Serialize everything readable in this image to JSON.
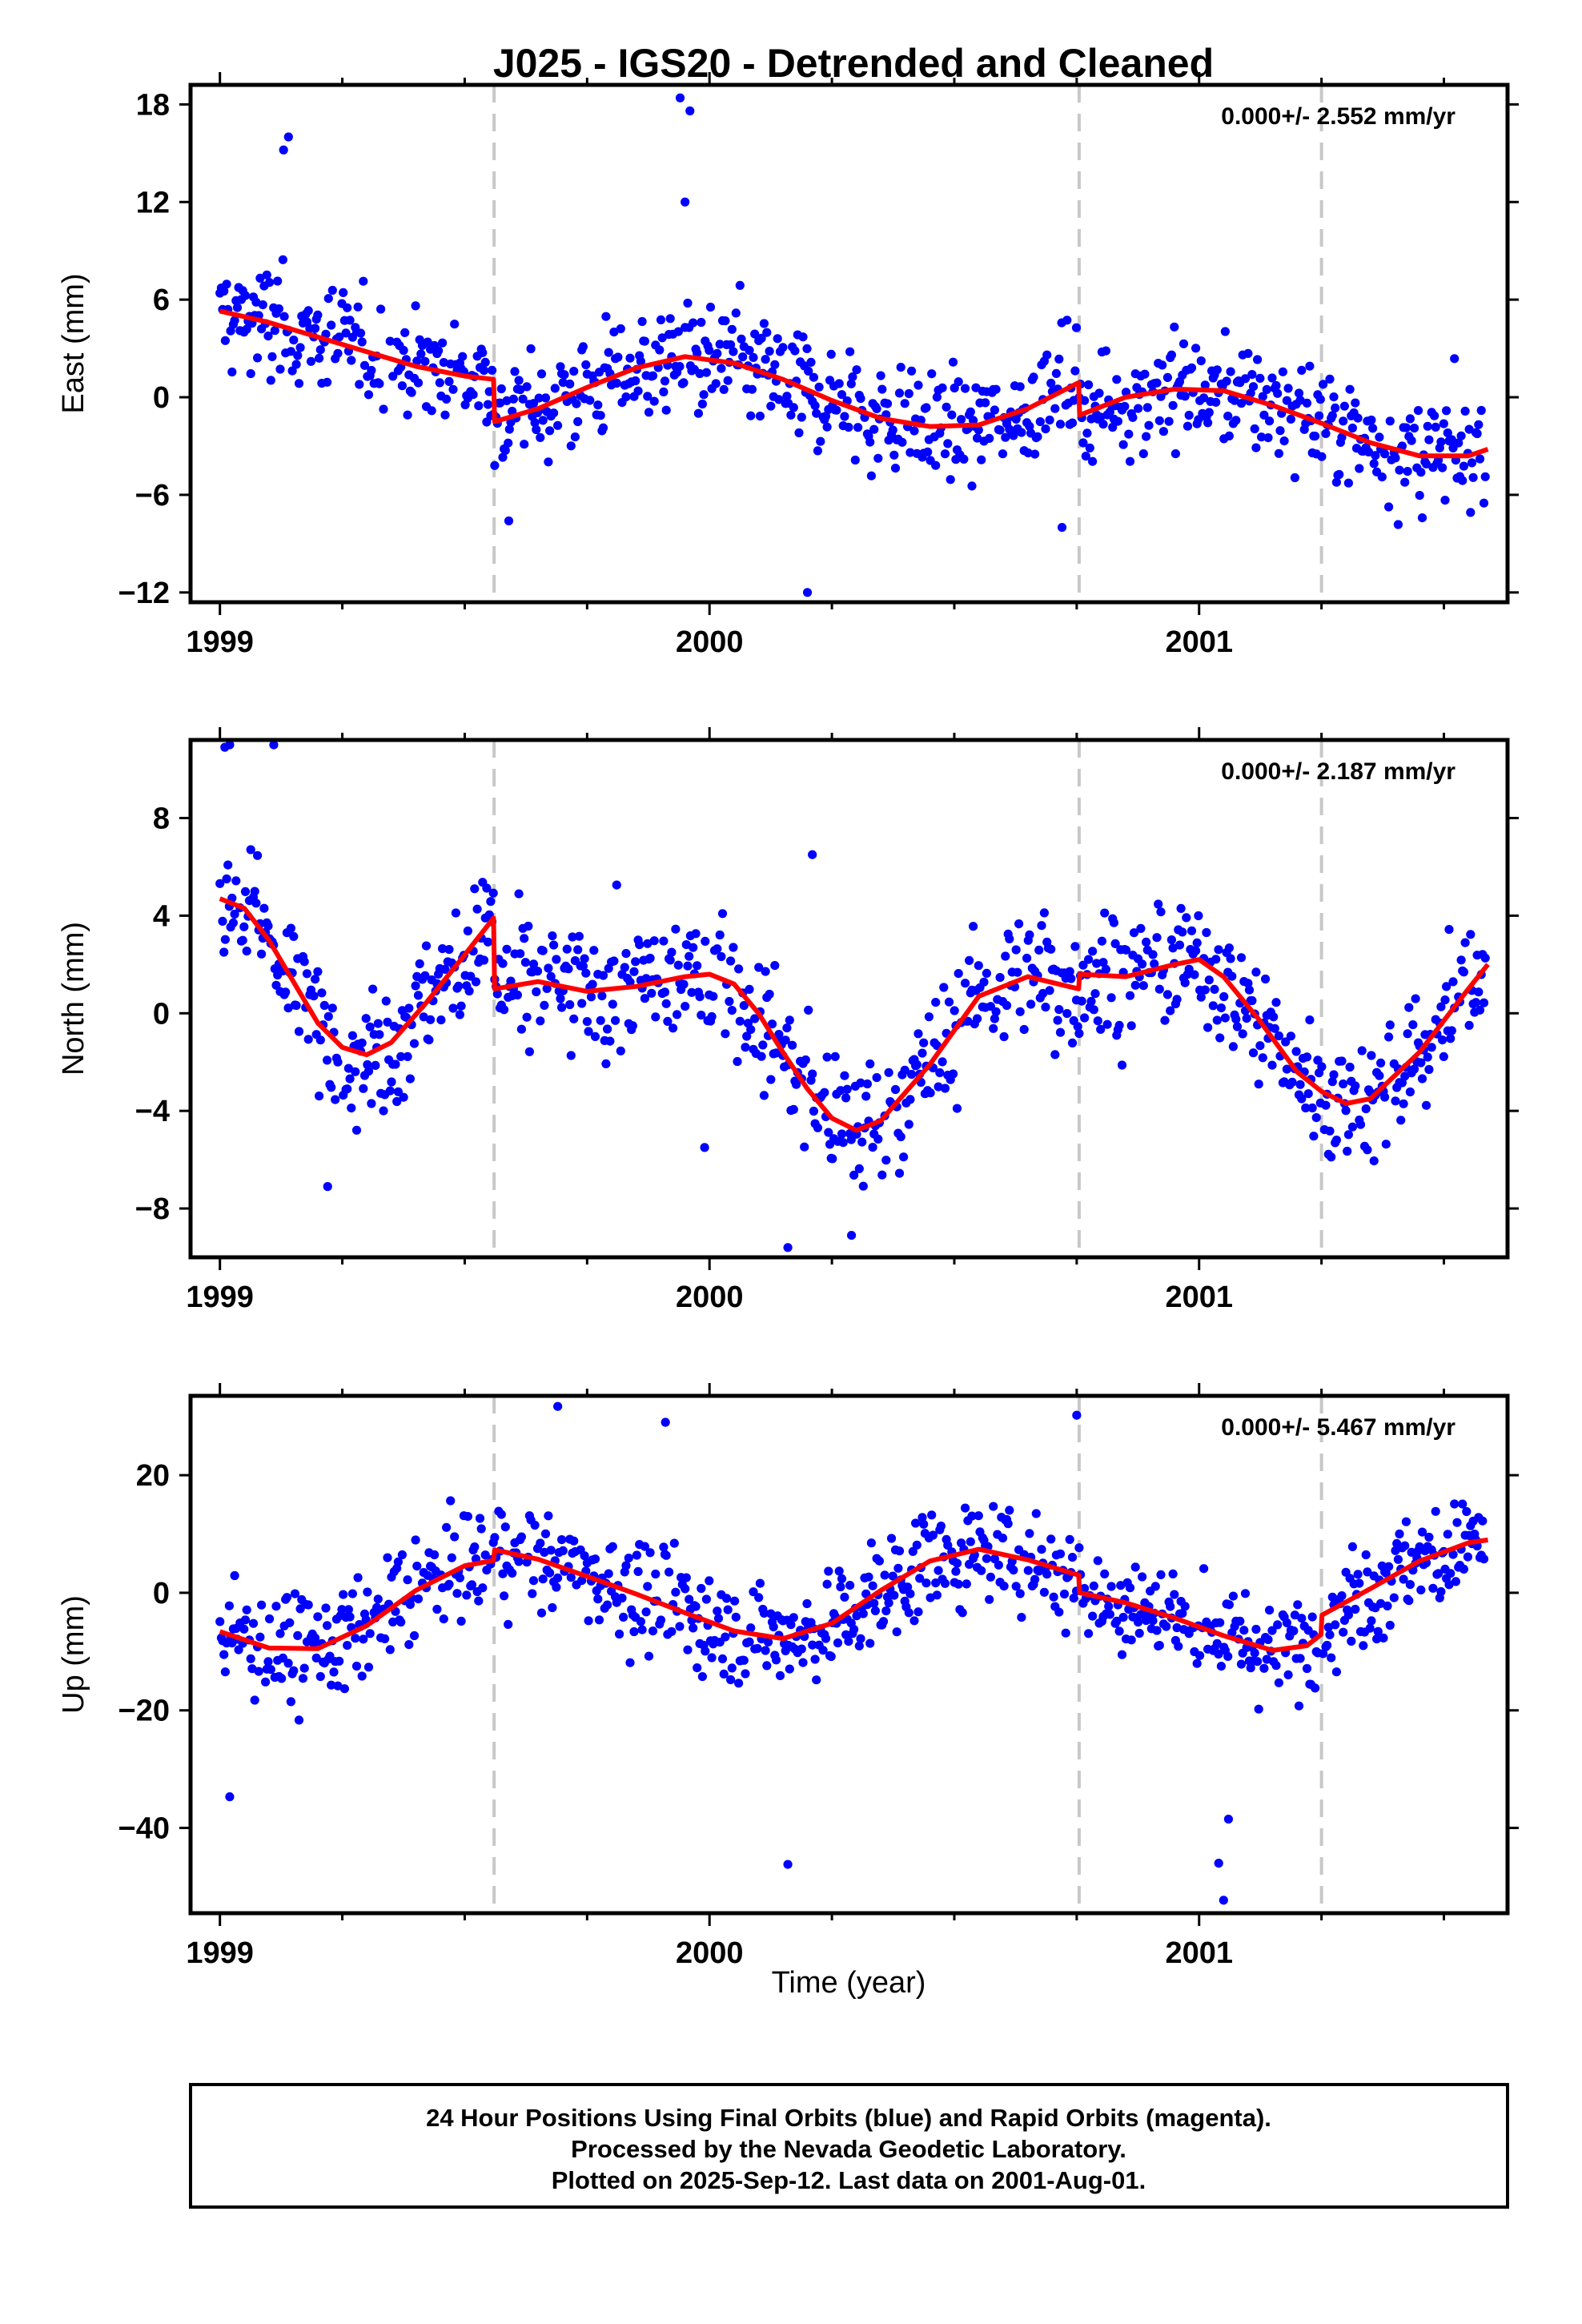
{
  "title": "J025 - IGS20 - Detrended and Cleaned",
  "xlabel": "Time (year)",
  "footer": [
    "24 Hour Positions Using Final Orbits (blue) and Rapid Orbits (magenta).",
    "Processed by the Nevada Geodetic Laboratory.",
    "Plotted on 2025-Sep-12. Last data on 2001-Aug-01."
  ],
  "colors": {
    "final_orbits": "#0000ff",
    "model": "#ff0000",
    "step_lines": "#c8c8c8",
    "frame": "#000000"
  },
  "chart_data": [
    {
      "type": "scatter",
      "panel": "east",
      "ylabel": "East (mm)",
      "rate": "0.000+/- 2.552 mm/yr",
      "xlim": [
        1998.94,
        2001.63
      ],
      "ylim": [
        -12.6,
        19.2
      ],
      "xticks": [
        1999,
        2000,
        2001
      ],
      "xtick_labels": [
        "1999",
        "2000",
        "2001"
      ],
      "yticks": [
        -12,
        -6,
        0,
        6,
        12,
        18
      ],
      "ytick_labels": [
        "−12",
        "−6",
        "0",
        "6",
        "12",
        "18"
      ],
      "steps": [
        1999.56,
        2000.755,
        2001.25
      ],
      "model": [
        [
          1999.0,
          5.3
        ],
        [
          1999.1,
          4.6
        ],
        [
          1999.2,
          3.7
        ],
        [
          1999.3,
          2.8
        ],
        [
          1999.4,
          1.9
        ],
        [
          1999.5,
          1.3
        ],
        [
          1999.559,
          1.1
        ],
        [
          1999.561,
          -1.5
        ],
        [
          1999.65,
          -0.7
        ],
        [
          1999.75,
          0.6
        ],
        [
          1999.85,
          1.8
        ],
        [
          1999.95,
          2.5
        ],
        [
          2000.05,
          2.1
        ],
        [
          2000.15,
          1.1
        ],
        [
          2000.25,
          -0.2
        ],
        [
          2000.35,
          -1.3
        ],
        [
          2000.45,
          -1.8
        ],
        [
          2000.55,
          -1.7
        ],
        [
          2000.65,
          -0.7
        ],
        [
          2000.754,
          0.9
        ],
        [
          2000.756,
          -1.1
        ],
        [
          2000.85,
          0.0
        ],
        [
          2000.95,
          0.5
        ],
        [
          2001.05,
          0.4
        ],
        [
          2001.15,
          -0.5
        ],
        [
          2001.25,
          -1.6
        ],
        [
          2001.35,
          -2.8
        ],
        [
          2001.45,
          -3.6
        ],
        [
          2001.55,
          -3.6
        ],
        [
          2001.59,
          -3.2
        ]
      ],
      "outliers": [
        [
          1999.13,
          15.2
        ],
        [
          1999.14,
          16.0
        ],
        [
          1999.94,
          18.4
        ],
        [
          1999.96,
          17.6
        ],
        [
          1999.95,
          12.0
        ],
        [
          2000.2,
          -12.0
        ],
        [
          2000.72,
          -8.0
        ],
        [
          1999.59,
          -7.6
        ]
      ]
    },
    {
      "type": "scatter",
      "panel": "north",
      "ylabel": "North (mm)",
      "rate": "0.000+/- 2.187 mm/yr",
      "xlim": [
        1998.94,
        2001.63
      ],
      "ylim": [
        -10.0,
        11.2
      ],
      "xticks": [
        1999,
        2000,
        2001
      ],
      "xtick_labels": [
        "1999",
        "2000",
        "2001"
      ],
      "yticks": [
        -8,
        -4,
        0,
        4,
        8
      ],
      "ytick_labels": [
        "−8",
        "−4",
        "0",
        "4",
        "8"
      ],
      "steps": [
        1999.56,
        2000.755,
        2001.25
      ],
      "model": [
        [
          1999.0,
          4.7
        ],
        [
          1999.05,
          4.3
        ],
        [
          1999.1,
          3.0
        ],
        [
          1999.15,
          1.3
        ],
        [
          1999.2,
          -0.4
        ],
        [
          1999.25,
          -1.4
        ],
        [
          1999.3,
          -1.7
        ],
        [
          1999.35,
          -1.2
        ],
        [
          1999.42,
          0.4
        ],
        [
          1999.5,
          2.4
        ],
        [
          1999.559,
          3.9
        ],
        [
          1999.561,
          1.0
        ],
        [
          1999.65,
          1.3
        ],
        [
          1999.75,
          0.9
        ],
        [
          1999.85,
          1.1
        ],
        [
          1999.95,
          1.5
        ],
        [
          2000.0,
          1.6
        ],
        [
          2000.05,
          1.2
        ],
        [
          2000.1,
          0.0
        ],
        [
          2000.15,
          -1.6
        ],
        [
          2000.2,
          -3.1
        ],
        [
          2000.25,
          -4.3
        ],
        [
          2000.3,
          -4.8
        ],
        [
          2000.35,
          -4.4
        ],
        [
          2000.45,
          -2.1
        ],
        [
          2000.55,
          0.7
        ],
        [
          2000.65,
          1.5
        ],
        [
          2000.754,
          1.0
        ],
        [
          2000.756,
          1.6
        ],
        [
          2000.85,
          1.5
        ],
        [
          2000.95,
          2.0
        ],
        [
          2001.0,
          2.2
        ],
        [
          2001.05,
          1.5
        ],
        [
          2001.12,
          -0.2
        ],
        [
          2001.2,
          -2.4
        ],
        [
          2001.25,
          -3.2
        ],
        [
          2001.3,
          -3.7
        ],
        [
          2001.35,
          -3.5
        ],
        [
          2001.45,
          -1.6
        ],
        [
          2001.55,
          1.0
        ],
        [
          2001.59,
          2.0
        ]
      ],
      "outliers": [
        [
          1999.01,
          10.9
        ],
        [
          1999.02,
          11.0
        ],
        [
          1999.11,
          11.0
        ],
        [
          1999.22,
          -7.1
        ],
        [
          2000.16,
          -9.6
        ],
        [
          2000.29,
          -9.1
        ],
        [
          2000.21,
          6.5
        ],
        [
          1999.99,
          -5.5
        ]
      ]
    },
    {
      "type": "scatter",
      "panel": "up",
      "ylabel": "Up (mm)",
      "rate": "0.000+/- 5.467 mm/yr",
      "xlim": [
        1998.94,
        2001.63
      ],
      "ylim": [
        -54.5,
        33.5
      ],
      "xticks": [
        1999,
        2000,
        2001
      ],
      "xtick_labels": [
        "1999",
        "2000",
        "2001"
      ],
      "yticks": [
        -40,
        -20,
        0,
        20
      ],
      "ytick_labels": [
        "−40",
        "−20",
        "0",
        "20"
      ],
      "steps": [
        1999.56,
        2000.755,
        2001.25
      ],
      "model": [
        [
          1999.0,
          -6.6
        ],
        [
          1999.1,
          -9.4
        ],
        [
          1999.2,
          -9.5
        ],
        [
          1999.3,
          -5.6
        ],
        [
          1999.4,
          0.4
        ],
        [
          1999.5,
          4.6
        ],
        [
          1999.559,
          5.5
        ],
        [
          1999.561,
          7.3
        ],
        [
          1999.65,
          5.7
        ],
        [
          1999.75,
          2.8
        ],
        [
          1999.85,
          -0.2
        ],
        [
          1999.95,
          -3.4
        ],
        [
          2000.05,
          -6.5
        ],
        [
          2000.15,
          -7.8
        ],
        [
          2000.25,
          -5.2
        ],
        [
          2000.35,
          0.4
        ],
        [
          2000.45,
          5.4
        ],
        [
          2000.55,
          7.4
        ],
        [
          2000.65,
          5.6
        ],
        [
          2000.754,
          3.0
        ],
        [
          2000.756,
          0.0
        ],
        [
          2000.85,
          -1.7
        ],
        [
          2000.95,
          -4.3
        ],
        [
          2001.05,
          -7.3
        ],
        [
          2001.15,
          -9.8
        ],
        [
          2001.22,
          -9.0
        ],
        [
          2001.249,
          -7.1
        ],
        [
          2001.251,
          -3.8
        ],
        [
          2001.35,
          0.7
        ],
        [
          2001.45,
          5.4
        ],
        [
          2001.55,
          8.5
        ],
        [
          2001.59,
          9.0
        ]
      ],
      "outliers": [
        [
          1999.02,
          -34.7
        ],
        [
          2000.16,
          -46.2
        ],
        [
          2001.05,
          -52.3
        ],
        [
          2001.04,
          -46.0
        ],
        [
          2001.06,
          -38.5
        ],
        [
          1999.69,
          31.7
        ],
        [
          1999.91,
          29.0
        ],
        [
          2000.75,
          30.2
        ]
      ]
    }
  ]
}
